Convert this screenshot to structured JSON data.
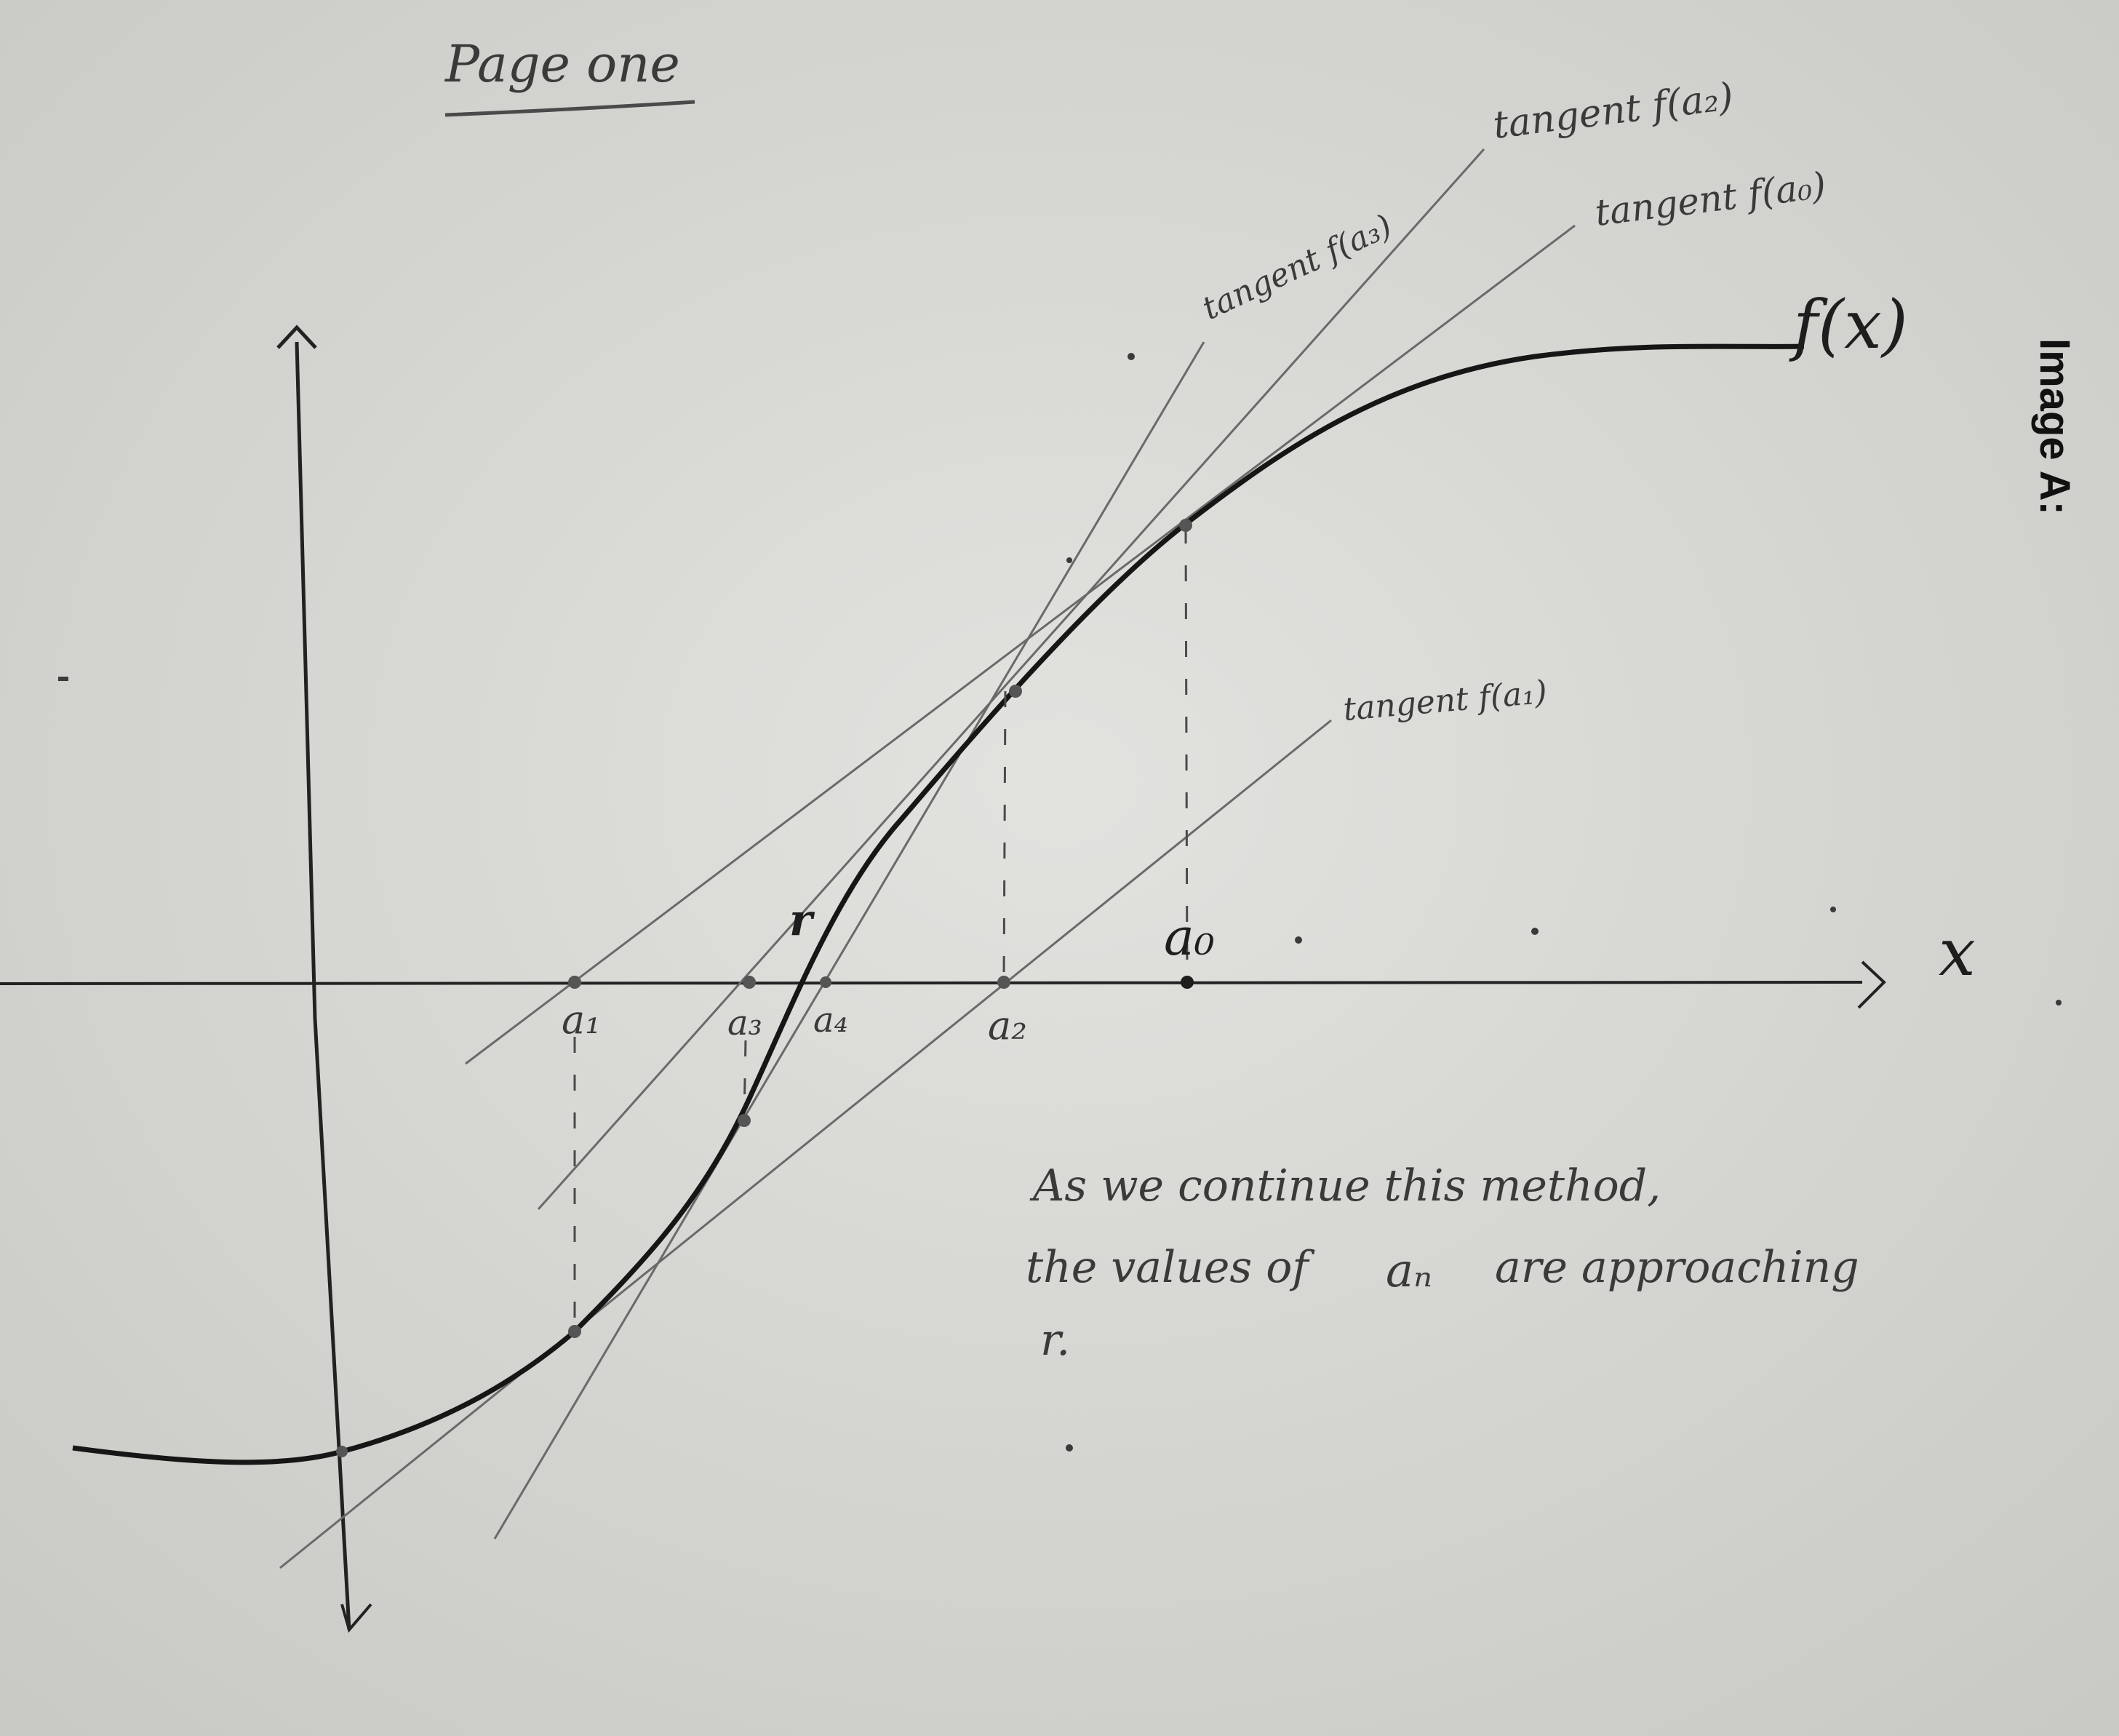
{
  "page_title": "Page one",
  "side_label": "Image A:",
  "axes": {
    "x_label": "x",
    "origin_marker": "r"
  },
  "function_label": "f(x)",
  "tangents": [
    {
      "id": "a0",
      "label": "tangent f(a₀)"
    },
    {
      "id": "a1",
      "label": "tangent f(a₁)"
    },
    {
      "id": "a2",
      "label": "tangent f(a₂)"
    },
    {
      "id": "a3",
      "label": "tangent f(a₃)"
    }
  ],
  "points": {
    "a0": "a₀",
    "a1": "a₁",
    "a2": "a₂",
    "a3": "a₃",
    "a4": "a₄",
    "r": "r"
  },
  "note": {
    "line1": "As we continue this method,",
    "line2_prefix": "the values of",
    "line2_term": "aₙ",
    "line2_suffix": "are approaching",
    "line3": "r."
  },
  "colors": {
    "paper": "#d9d9d6",
    "ink": "#1e1e1e",
    "pencil": "#4a4a4a",
    "tangent": "#6a6a6a"
  }
}
